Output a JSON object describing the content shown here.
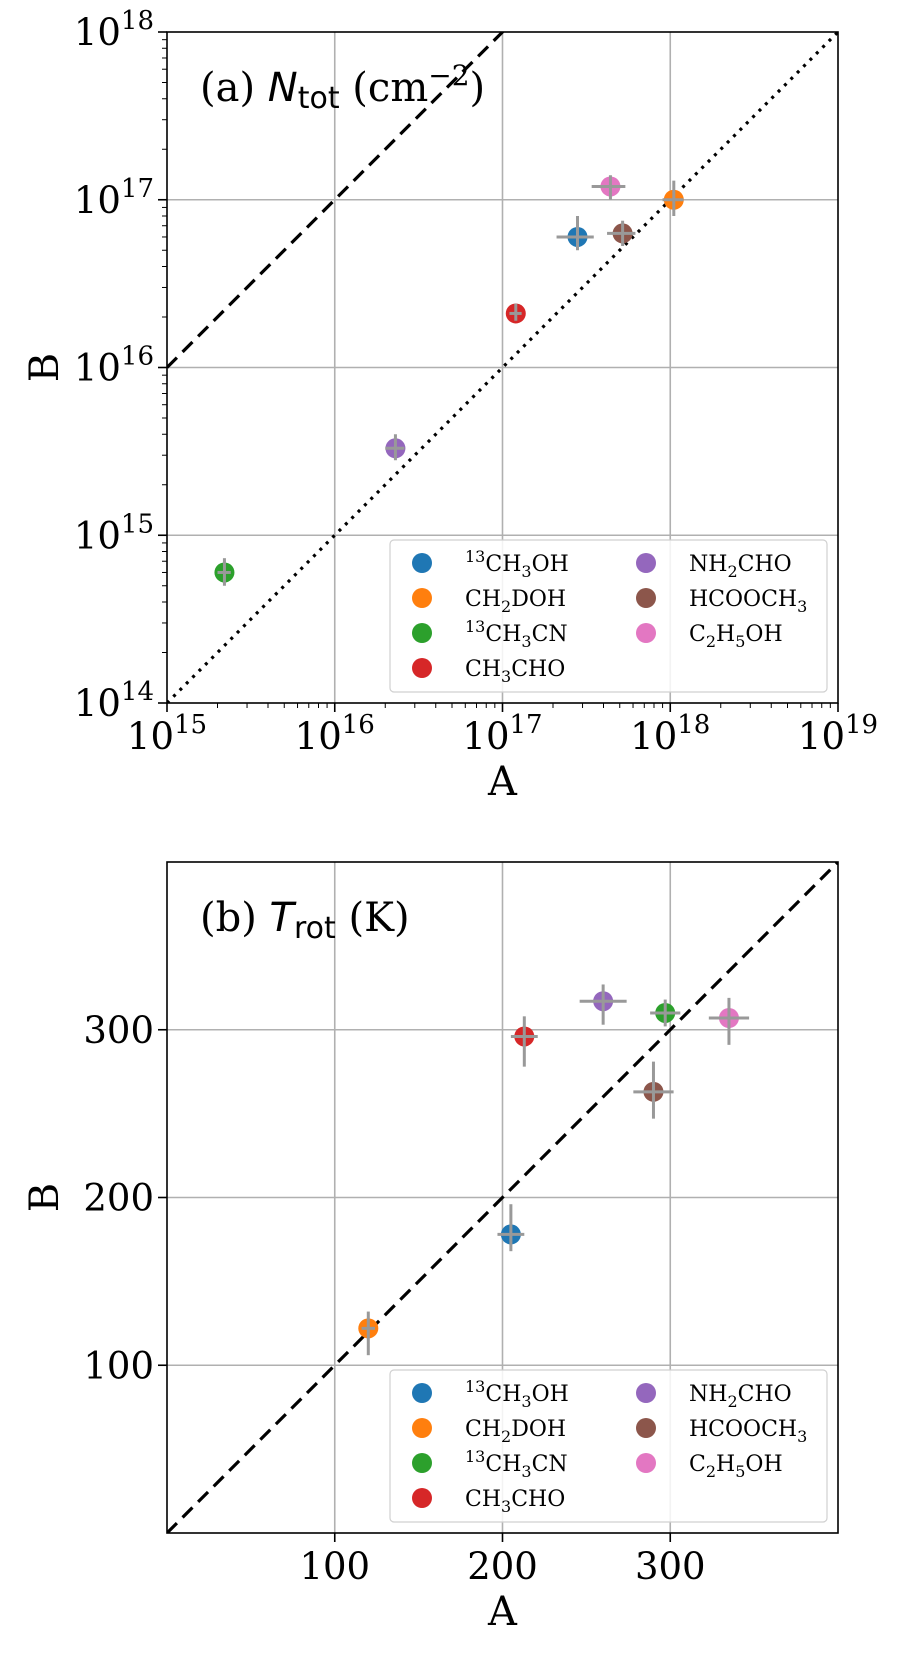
{
  "chart_data": [
    {
      "type": "scatter",
      "panel": "a",
      "title": {
        "prefix": "(a) ",
        "symbol": "N",
        "subscript": "tot",
        "unit_open": " (cm",
        "unit_sup": "−2",
        "unit_close": ")"
      },
      "xlabel": "A",
      "ylabel": "B",
      "xscale": "log",
      "yscale": "log",
      "xlim": [
        1000000000000000.0,
        1e+19
      ],
      "ylim": [
        100000000000000.0,
        1e+18
      ],
      "xticks": [
        {
          "base": "10",
          "exp": "15"
        },
        {
          "base": "10",
          "exp": "16"
        },
        {
          "base": "10",
          "exp": "17"
        },
        {
          "base": "10",
          "exp": "18"
        },
        {
          "base": "10",
          "exp": "19"
        }
      ],
      "yticks": [
        {
          "base": "10",
          "exp": "14"
        },
        {
          "base": "10",
          "exp": "15"
        },
        {
          "base": "10",
          "exp": "16"
        },
        {
          "base": "10",
          "exp": "17"
        },
        {
          "base": "10",
          "exp": "18"
        }
      ],
      "grid": true,
      "lines": [
        {
          "name": "B = 10 A",
          "style": "dashed",
          "factor": 10
        },
        {
          "name": "B = 0.1 A",
          "style": "dotted",
          "factor": 0.1
        }
      ],
      "series": [
        {
          "name": "13CH3OH",
          "color": "#1f77b4",
          "x": 2.8e+17,
          "y": 6e+16,
          "x_err": [
            7e+16,
            7e+16
          ],
          "y_err": [
            1e+16,
            2e+16
          ]
        },
        {
          "name": "CH2DOH",
          "color": "#ff7f0e",
          "x": 1.05e+18,
          "y": 1e+17,
          "x_err": [
            1.5e+17,
            1.5e+17
          ],
          "y_err": [
            2e+16,
            3e+16
          ]
        },
        {
          "name": "13CH3CN",
          "color": "#2ca02c",
          "x": 2200000000000000.0,
          "y": 600000000000000.0,
          "x_err": [
            200000000000000.0,
            200000000000000.0
          ],
          "y_err": [
            100000000000000.0,
            130000000000000.0
          ]
        },
        {
          "name": "CH3CHO",
          "color": "#d62728",
          "x": 1.2e+17,
          "y": 2.1e+16,
          "x_err": [
            1e+16,
            1e+16
          ],
          "y_err": [
            2000000000000000.0,
            3000000000000000.0
          ]
        },
        {
          "name": "NH2CHO",
          "color": "#9467bd",
          "x": 2.3e+16,
          "y": 3300000000000000.0,
          "x_err": [
            3000000000000000.0,
            3000000000000000.0
          ],
          "y_err": [
            500000000000000.0,
            700000000000000.0
          ]
        },
        {
          "name": "HCOOCH3",
          "color": "#8c564b",
          "x": 5.2e+17,
          "y": 6.3e+16,
          "x_err": [
            1e+17,
            1e+17
          ],
          "y_err": [
            1e+16,
            1.2e+16
          ]
        },
        {
          "name": "C2H5OH",
          "color": "#e377c2",
          "x": 4.4e+17,
          "y": 1.2e+17,
          "x_err": [
            1e+17,
            1e+17
          ],
          "y_err": [
            2e+16,
            2e+16
          ]
        }
      ]
    },
    {
      "type": "scatter",
      "panel": "b",
      "title": {
        "prefix": "(b) ",
        "symbol": "T",
        "subscript": "rot",
        "unit_open": " (K)",
        "unit_sup": "",
        "unit_close": ""
      },
      "xlabel": "A",
      "ylabel": "B",
      "xscale": "linear",
      "yscale": "linear",
      "xlim": [
        0,
        400
      ],
      "ylim": [
        0,
        400
      ],
      "xticks": [
        {
          "value": 100,
          "label": "100"
        },
        {
          "value": 200,
          "label": "200"
        },
        {
          "value": 300,
          "label": "300"
        }
      ],
      "yticks": [
        {
          "value": 100,
          "label": "100"
        },
        {
          "value": 200,
          "label": "200"
        },
        {
          "value": 300,
          "label": "300"
        }
      ],
      "grid": true,
      "lines": [
        {
          "name": "B = A",
          "style": "dashed",
          "factor": 1
        }
      ],
      "series": [
        {
          "name": "13CH3OH",
          "color": "#1f77b4",
          "x": 205,
          "y": 178,
          "x_err": [
            8,
            8
          ],
          "y_err": [
            10,
            18
          ]
        },
        {
          "name": "CH2DOH",
          "color": "#ff7f0e",
          "x": 120,
          "y": 122,
          "x_err": [
            4,
            4
          ],
          "y_err": [
            16,
            10
          ]
        },
        {
          "name": "13CH3CN",
          "color": "#2ca02c",
          "x": 297,
          "y": 310,
          "x_err": [
            9,
            9
          ],
          "y_err": [
            8,
            8
          ]
        },
        {
          "name": "CH3CHO",
          "color": "#d62728",
          "x": 213,
          "y": 296,
          "x_err": [
            8,
            8
          ],
          "y_err": [
            18,
            12
          ]
        },
        {
          "name": "NH2CHO",
          "color": "#9467bd",
          "x": 260,
          "y": 317,
          "x_err": [
            14,
            14
          ],
          "y_err": [
            14,
            10
          ]
        },
        {
          "name": "HCOOCH3",
          "color": "#8c564b",
          "x": 290,
          "y": 263,
          "x_err": [
            12,
            12
          ],
          "y_err": [
            16,
            18
          ]
        },
        {
          "name": "C2H5OH",
          "color": "#e377c2",
          "x": 335,
          "y": 307,
          "x_err": [
            12,
            12
          ],
          "y_err": [
            16,
            12
          ]
        }
      ]
    }
  ],
  "legend": {
    "placement": "lower-right",
    "entries": [
      {
        "key": "13CH3OH",
        "color": "#1f77b4",
        "parts": [
          [
            "sup",
            "13"
          ],
          [
            "n",
            "CH"
          ],
          [
            "sub",
            "3"
          ],
          [
            "n",
            "OH"
          ]
        ]
      },
      {
        "key": "CH2DOH",
        "color": "#ff7f0e",
        "parts": [
          [
            "n",
            "CH"
          ],
          [
            "sub",
            "2"
          ],
          [
            "n",
            "DOH"
          ]
        ]
      },
      {
        "key": "13CH3CN",
        "color": "#2ca02c",
        "parts": [
          [
            "sup",
            "13"
          ],
          [
            "n",
            "CH"
          ],
          [
            "sub",
            "3"
          ],
          [
            "n",
            "CN"
          ]
        ]
      },
      {
        "key": "CH3CHO",
        "color": "#d62728",
        "parts": [
          [
            "n",
            "CH"
          ],
          [
            "sub",
            "3"
          ],
          [
            "n",
            "CHO"
          ]
        ]
      },
      {
        "key": "NH2CHO",
        "color": "#9467bd",
        "parts": [
          [
            "n",
            "NH"
          ],
          [
            "sub",
            "2"
          ],
          [
            "n",
            "CHO"
          ]
        ]
      },
      {
        "key": "HCOOCH3",
        "color": "#8c564b",
        "parts": [
          [
            "n",
            "HCOOCH"
          ],
          [
            "sub",
            "3"
          ]
        ]
      },
      {
        "key": "C2H5OH",
        "color": "#e377c2",
        "parts": [
          [
            "n",
            "C"
          ],
          [
            "sub",
            "2"
          ],
          [
            "n",
            "H"
          ],
          [
            "sub",
            "5"
          ],
          [
            "n",
            "OH"
          ]
        ]
      }
    ]
  }
}
